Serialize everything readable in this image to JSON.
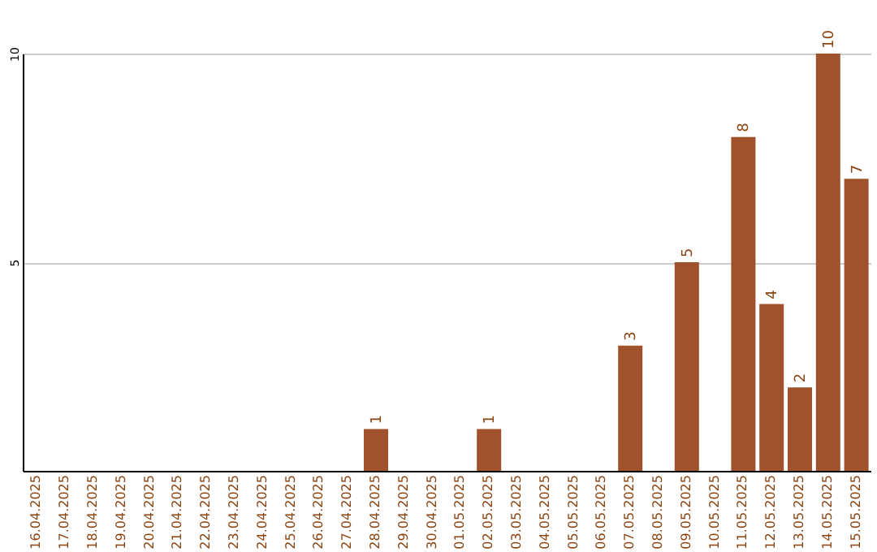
{
  "chart_data": {
    "type": "bar",
    "categories": [
      "16.04.2025",
      "17.04.2025",
      "18.04.2025",
      "19.04.2025",
      "20.04.2025",
      "21.04.2025",
      "22.04.2025",
      "23.04.2025",
      "24.04.2025",
      "25.04.2025",
      "26.04.2025",
      "27.04.2025",
      "28.04.2025",
      "29.04.2025",
      "30.04.2025",
      "01.05.2025",
      "02.05.2025",
      "03.05.2025",
      "04.05.2025",
      "05.05.2025",
      "06.05.2025",
      "07.05.2025",
      "08.05.2025",
      "09.05.2025",
      "10.05.2025",
      "11.05.2025",
      "12.05.2025",
      "13.05.2025",
      "14.05.2025",
      "15.05.2025"
    ],
    "values": [
      0,
      0,
      0,
      0,
      0,
      0,
      0,
      0,
      0,
      0,
      0,
      0,
      1,
      0,
      0,
      0,
      1,
      0,
      0,
      0,
      0,
      3,
      0,
      5,
      0,
      8,
      4,
      2,
      10,
      7
    ],
    "value_labels": [
      null,
      null,
      null,
      null,
      null,
      null,
      null,
      null,
      null,
      null,
      null,
      null,
      "1",
      null,
      null,
      null,
      "1",
      null,
      null,
      null,
      null,
      "3",
      null,
      "5",
      null,
      "8",
      "4",
      "2",
      "10",
      "7"
    ],
    "color": "#a0522d",
    "ylim": [
      0,
      10
    ],
    "yticks": [
      5,
      10
    ],
    "grid": "y"
  }
}
